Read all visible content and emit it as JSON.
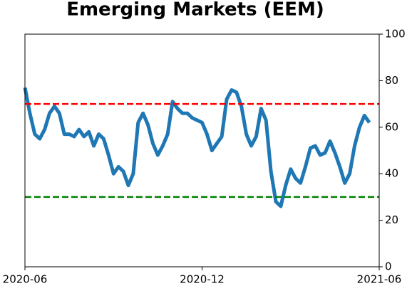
{
  "chart_data": {
    "type": "line",
    "title": "Emerging Markets (EEM)",
    "categories": [
      "2020-06",
      null,
      null,
      null,
      null,
      null,
      null,
      null,
      null,
      null,
      null,
      null,
      null,
      null,
      null,
      null,
      null,
      null,
      null,
      null,
      null,
      null,
      null,
      null,
      null,
      null,
      null,
      null,
      null,
      null,
      null,
      null,
      null,
      null,
      null,
      null,
      "2020-12",
      null,
      null,
      null,
      null,
      null,
      null,
      null,
      null,
      null,
      null,
      null,
      null,
      null,
      null,
      null,
      null,
      null,
      null,
      null,
      null,
      null,
      null,
      null,
      null,
      null,
      null,
      null,
      null,
      null,
      null,
      null,
      null,
      null,
      null,
      null,
      "2021-06"
    ],
    "series": [
      {
        "color": "#1f77b4",
        "values": [
          77,
          66,
          57,
          55,
          59,
          66,
          69,
          66,
          57,
          57,
          56,
          59,
          56,
          58,
          52,
          57,
          55,
          48,
          40,
          43,
          41,
          35,
          40,
          62,
          66,
          61,
          53,
          48,
          52,
          57,
          71,
          68,
          66,
          66,
          64,
          63,
          62,
          57,
          50,
          53,
          56,
          72,
          76,
          75,
          69,
          57,
          52,
          56,
          68,
          63,
          41,
          28,
          26,
          35,
          42,
          38,
          36,
          43,
          51,
          52,
          48,
          49,
          54,
          49,
          43,
          36,
          40,
          52,
          60,
          65,
          62,
          null,
          null
        ]
      }
    ],
    "ylim": [
      0,
      100
    ],
    "yticks": [
      0,
      20,
      40,
      60,
      80,
      100
    ],
    "y_axis_side": "right",
    "hlines": [
      {
        "value": 70,
        "color": "red"
      },
      {
        "value": 30,
        "color": "green"
      }
    ]
  }
}
